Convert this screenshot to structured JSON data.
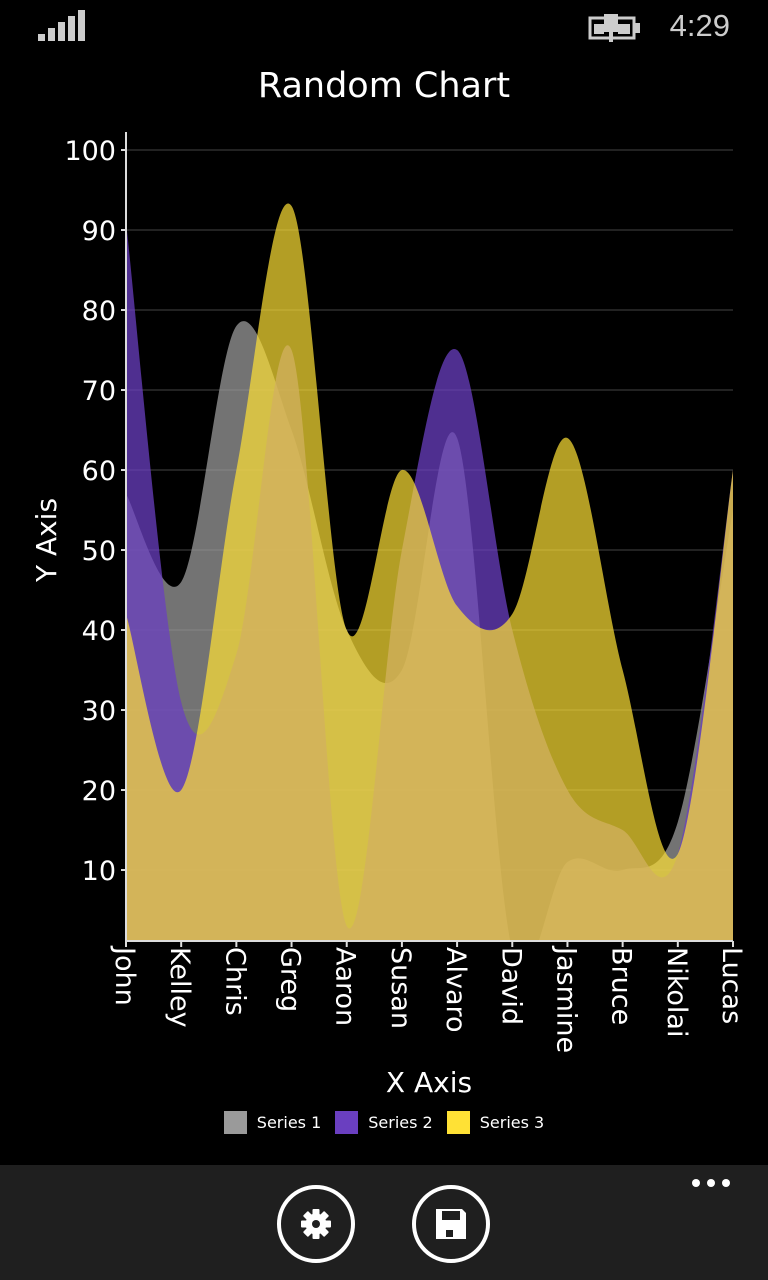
{
  "status_bar": {
    "time": "4:29",
    "signal_icon": "signal-bars-icon",
    "battery_icon": "battery-charging-icon"
  },
  "chart_data": {
    "type": "area",
    "title": "Random Chart",
    "xlabel": "X Axis",
    "ylabel": "Y Axis",
    "ylim": [
      1,
      100
    ],
    "yticks": [
      10,
      20,
      30,
      40,
      50,
      60,
      70,
      80,
      90,
      100
    ],
    "grid": true,
    "legend_position": "bottom",
    "categories": [
      "John",
      "Kelley",
      "Chris",
      "Greg",
      "Aaron",
      "Susan",
      "Alvaro",
      "David",
      "Jasmine",
      "Bruce",
      "Nikolai",
      "Lucas"
    ],
    "series": [
      {
        "name": "Series 1",
        "color": "#9a9a9a",
        "values": [
          57,
          46,
          78,
          65,
          40,
          35,
          64,
          0,
          11,
          10,
          16,
          55
        ]
      },
      {
        "name": "Series 2",
        "color": "#6a3fc0",
        "values": [
          91,
          31,
          37,
          75,
          3,
          50,
          75,
          40,
          20,
          15,
          12,
          60
        ]
      },
      {
        "name": "Series 3",
        "color": "#ffe135",
        "values": [
          42,
          20,
          60,
          93,
          40,
          60,
          43,
          42,
          64,
          35,
          12,
          60
        ]
      }
    ]
  },
  "app_bar": {
    "settings_icon": "gear-icon",
    "save_icon": "save-icon",
    "more_icon": "more-icon"
  }
}
